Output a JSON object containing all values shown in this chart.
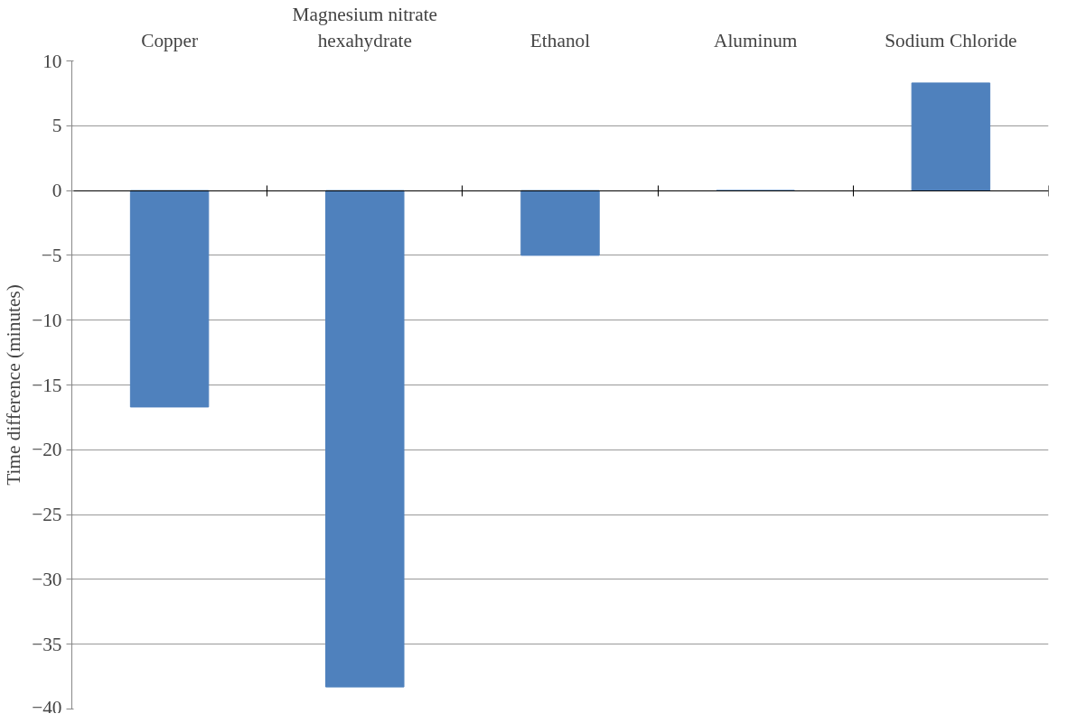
{
  "chart_data": {
    "type": "bar",
    "ylabel": "Time difference (minutes)",
    "categories": [
      "Copper",
      "Magnesium nitrate hexahydrate",
      "Ethanol",
      "Aluminum",
      "Sodium Chloride"
    ],
    "values": [
      -16.7,
      -38.3,
      -5,
      0,
      8.3
    ],
    "color": "#4f81bd",
    "ylim": [
      -40,
      10
    ],
    "yticks": [
      -40,
      -35,
      -30,
      -25,
      -20,
      -15,
      -10,
      -5,
      0,
      5,
      10
    ],
    "grid": "y"
  }
}
